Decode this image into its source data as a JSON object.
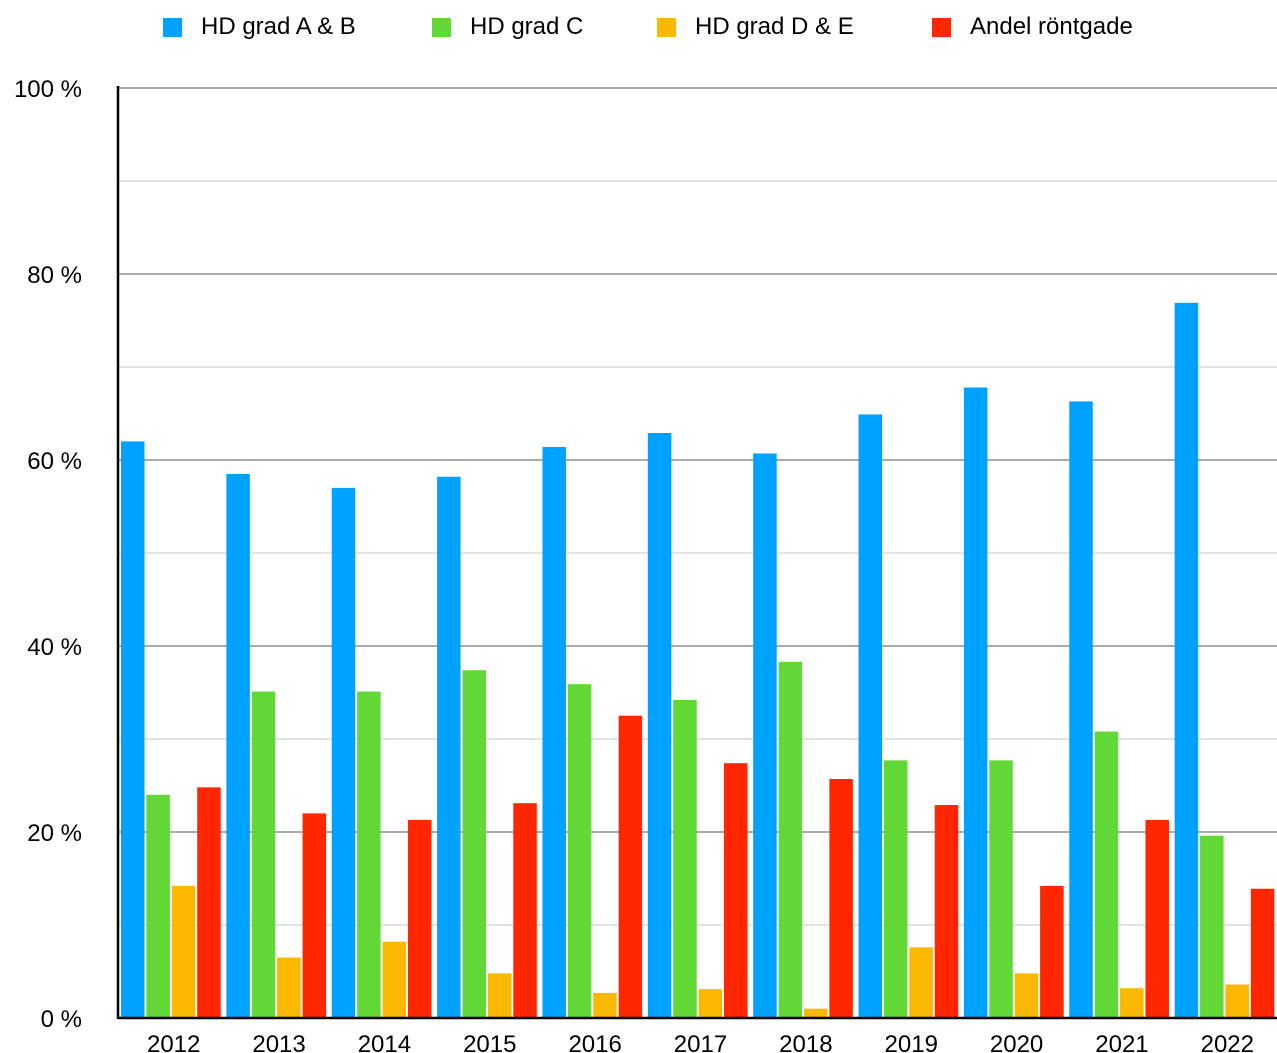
{
  "chart_data": {
    "type": "bar",
    "categories": [
      "2012",
      "2013",
      "2014",
      "2015",
      "2016",
      "2017",
      "2018",
      "2019",
      "2020",
      "2021",
      "2022"
    ],
    "series": [
      {
        "name": "HD grad A & B",
        "color": "#00a2ff",
        "values": [
          62.0,
          58.5,
          57.0,
          58.2,
          61.4,
          62.9,
          60.7,
          64.9,
          67.8,
          66.3,
          76.9
        ]
      },
      {
        "name": "HD grad C",
        "color": "#61d836",
        "values": [
          24.0,
          35.1,
          35.1,
          37.4,
          35.9,
          34.2,
          38.3,
          27.7,
          27.7,
          30.8,
          19.6
        ]
      },
      {
        "name": "HD grad D & E",
        "color": "#fbb800",
        "values": [
          14.2,
          6.5,
          8.2,
          4.8,
          2.7,
          3.1,
          1.0,
          7.6,
          4.8,
          3.2,
          3.6
        ]
      },
      {
        "name": "Andel röntgade",
        "color": "#ff2600",
        "values": [
          24.8,
          22.0,
          21.3,
          23.1,
          32.5,
          27.4,
          25.7,
          22.9,
          14.2,
          21.3,
          13.9
        ]
      }
    ],
    "ylim": [
      0,
      100
    ],
    "y_ticks": [
      {
        "value": 0,
        "label": "0 %"
      },
      {
        "value": 20,
        "label": "20 %"
      },
      {
        "value": 40,
        "label": "40 %"
      },
      {
        "value": 60,
        "label": "60 %"
      },
      {
        "value": 80,
        "label": "80 %"
      },
      {
        "value": 100,
        "label": "100 %"
      }
    ],
    "minor_grid_step": 10,
    "grid": true,
    "legend_position": "top-center",
    "title": "",
    "xlabel": "",
    "ylabel": ""
  }
}
